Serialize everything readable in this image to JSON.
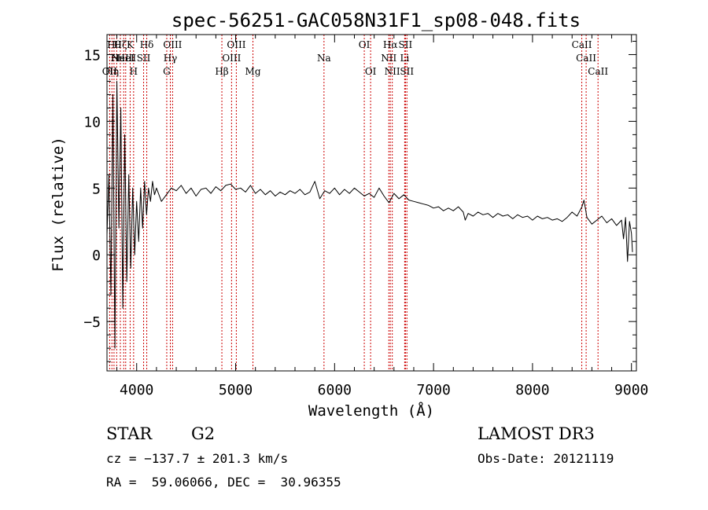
{
  "chart_data": {
    "type": "line",
    "title": "spec-56251-GAC058N31F1_sp08-048.fits",
    "xlabel": "Wavelength (Å)",
    "ylabel": "Flux (relative)",
    "xlim": [
      3700,
      9050
    ],
    "ylim": [
      -8.7,
      16.5
    ],
    "xticks": [
      {
        "value": 4000,
        "label": "4000"
      },
      {
        "value": 5000,
        "label": "5000"
      },
      {
        "value": 6000,
        "label": "6000"
      },
      {
        "value": 7000,
        "label": "7000"
      },
      {
        "value": 8000,
        "label": "8000"
      },
      {
        "value": 9000,
        "label": "9000"
      }
    ],
    "yticks": [
      {
        "value": -5,
        "label": "−5"
      },
      {
        "value": 0,
        "label": "0"
      },
      {
        "value": 5,
        "label": "5"
      },
      {
        "value": 10,
        "label": "10"
      },
      {
        "value": 15,
        "label": "15"
      }
    ],
    "grid": false,
    "series": [
      {
        "name": "spectrum",
        "color": "#000000",
        "x": [
          3700,
          3720,
          3740,
          3760,
          3780,
          3800,
          3820,
          3840,
          3860,
          3880,
          3900,
          3920,
          3940,
          3960,
          3980,
          4000,
          4020,
          4040,
          4060,
          4080,
          4100,
          4120,
          4140,
          4160,
          4180,
          4200,
          4250,
          4300,
          4350,
          4400,
          4450,
          4500,
          4550,
          4600,
          4650,
          4700,
          4750,
          4800,
          4850,
          4900,
          4950,
          5000,
          5050,
          5100,
          5150,
          5200,
          5250,
          5300,
          5350,
          5400,
          5450,
          5500,
          5550,
          5600,
          5650,
          5700,
          5750,
          5800,
          5850,
          5900,
          5950,
          6000,
          6050,
          6100,
          6150,
          6200,
          6250,
          6300,
          6350,
          6400,
          6450,
          6500,
          6550,
          6600,
          6650,
          6700,
          6750,
          6800,
          6850,
          6900,
          6950,
          7000,
          7050,
          7100,
          7150,
          7200,
          7250,
          7300,
          7320,
          7350,
          7400,
          7450,
          7500,
          7550,
          7600,
          7650,
          7700,
          7750,
          7800,
          7850,
          7900,
          7950,
          8000,
          8050,
          8100,
          8150,
          8200,
          8250,
          8300,
          8350,
          8400,
          8450,
          8500,
          8520,
          8550,
          8600,
          8650,
          8700,
          8750,
          8800,
          8850,
          8900,
          8920,
          8940,
          8960,
          8980,
          9000,
          9010
        ],
        "y": [
          1.5,
          6,
          -3,
          12,
          -7,
          13,
          2,
          11,
          -4,
          9,
          -2,
          6,
          -1,
          5,
          0,
          4,
          1,
          5,
          2,
          5.5,
          3,
          5,
          4,
          5.5,
          4.5,
          5,
          4,
          4.5,
          5,
          4.8,
          5.2,
          4.6,
          5,
          4.4,
          4.9,
          5,
          4.6,
          5.1,
          4.8,
          5.2,
          5.3,
          4.9,
          5,
          4.7,
          5.2,
          4.6,
          4.9,
          4.5,
          4.8,
          4.4,
          4.7,
          4.5,
          4.8,
          4.6,
          4.9,
          4.5,
          4.7,
          5.5,
          4.2,
          4.8,
          4.6,
          5,
          4.5,
          4.9,
          4.6,
          5,
          4.7,
          4.4,
          4.6,
          4.3,
          5,
          4.4,
          3.9,
          4.6,
          4.2,
          4.5,
          4.1,
          4,
          3.9,
          3.8,
          3.7,
          3.5,
          3.6,
          3.3,
          3.5,
          3.3,
          3.6,
          3.2,
          2.6,
          3.1,
          2.9,
          3.2,
          3.0,
          3.1,
          2.8,
          3.1,
          2.9,
          3.0,
          2.7,
          3.0,
          2.8,
          2.9,
          2.6,
          2.9,
          2.7,
          2.8,
          2.6,
          2.7,
          2.5,
          2.8,
          3.2,
          2.9,
          3.6,
          4.1,
          2.8,
          2.3,
          2.6,
          2.9,
          2.4,
          2.7,
          2.2,
          2.6,
          1.2,
          2.8,
          -0.5,
          2.5,
          1.6,
          0.2
        ]
      }
    ],
    "lines": [
      {
        "value": 3727,
        "label": "OII",
        "row": 3
      },
      {
        "value": 3750,
        "label": "Hη",
        "row": 3
      },
      {
        "value": 3771,
        "label": "Hθ",
        "row": 1
      },
      {
        "value": 3798,
        "label": "Hι",
        "row": 2
      },
      {
        "value": 3835,
        "label": "Hζ",
        "row": 1
      },
      {
        "value": 3869,
        "label": "NeIII",
        "row": 2
      },
      {
        "value": 3889,
        "label": "HeI",
        "row": 2
      },
      {
        "value": 3934,
        "label": "K",
        "row": 1
      },
      {
        "value": 3969,
        "label": "H",
        "row": 3
      },
      {
        "value": 4070,
        "label": "SII",
        "row": 2
      },
      {
        "value": 4102,
        "label": "Hδ",
        "row": 1
      },
      {
        "value": 4304,
        "label": "G",
        "row": 3
      },
      {
        "value": 4340,
        "label": "Hγ",
        "row": 2
      },
      {
        "value": 4363,
        "label": "OIII",
        "row": 1
      },
      {
        "value": 4861,
        "label": "Hβ",
        "row": 3
      },
      {
        "value": 4959,
        "label": "OIII",
        "row": 2
      },
      {
        "value": 5007,
        "label": "OIII",
        "row": 1
      },
      {
        "value": 5175,
        "label": "Mg",
        "row": 3
      },
      {
        "value": 5893,
        "label": "Na",
        "row": 2
      },
      {
        "value": 6300,
        "label": "OI",
        "row": 1
      },
      {
        "value": 6364,
        "label": "OI",
        "row": 3
      },
      {
        "value": 6548,
        "label": "NII",
        "row": 2
      },
      {
        "value": 6563,
        "label": "Hα",
        "row": 1
      },
      {
        "value": 6583,
        "label": "NII",
        "row": 3
      },
      {
        "value": 6708,
        "label": "Li",
        "row": 2
      },
      {
        "value": 6716,
        "label": "SII",
        "row": 1
      },
      {
        "value": 6731,
        "label": "SII",
        "row": 3
      },
      {
        "value": 8498,
        "label": "CaII",
        "row": 1
      },
      {
        "value": 8542,
        "label": "CaII",
        "row": 2
      },
      {
        "value": 8662,
        "label": "CaII",
        "row": 3
      }
    ],
    "colors": {
      "axes": "#000000",
      "line_markers": "#cc0000",
      "spectrum": "#000000"
    }
  },
  "footer": {
    "object_class": "STAR",
    "subclass": "G2",
    "survey": "LAMOST DR3",
    "cz": "cz = −137.7 ± 201.3 km/s",
    "obs_date": "Obs-Date: 20121119",
    "coords": "RA =  59.06066, DEC =  30.96355"
  }
}
